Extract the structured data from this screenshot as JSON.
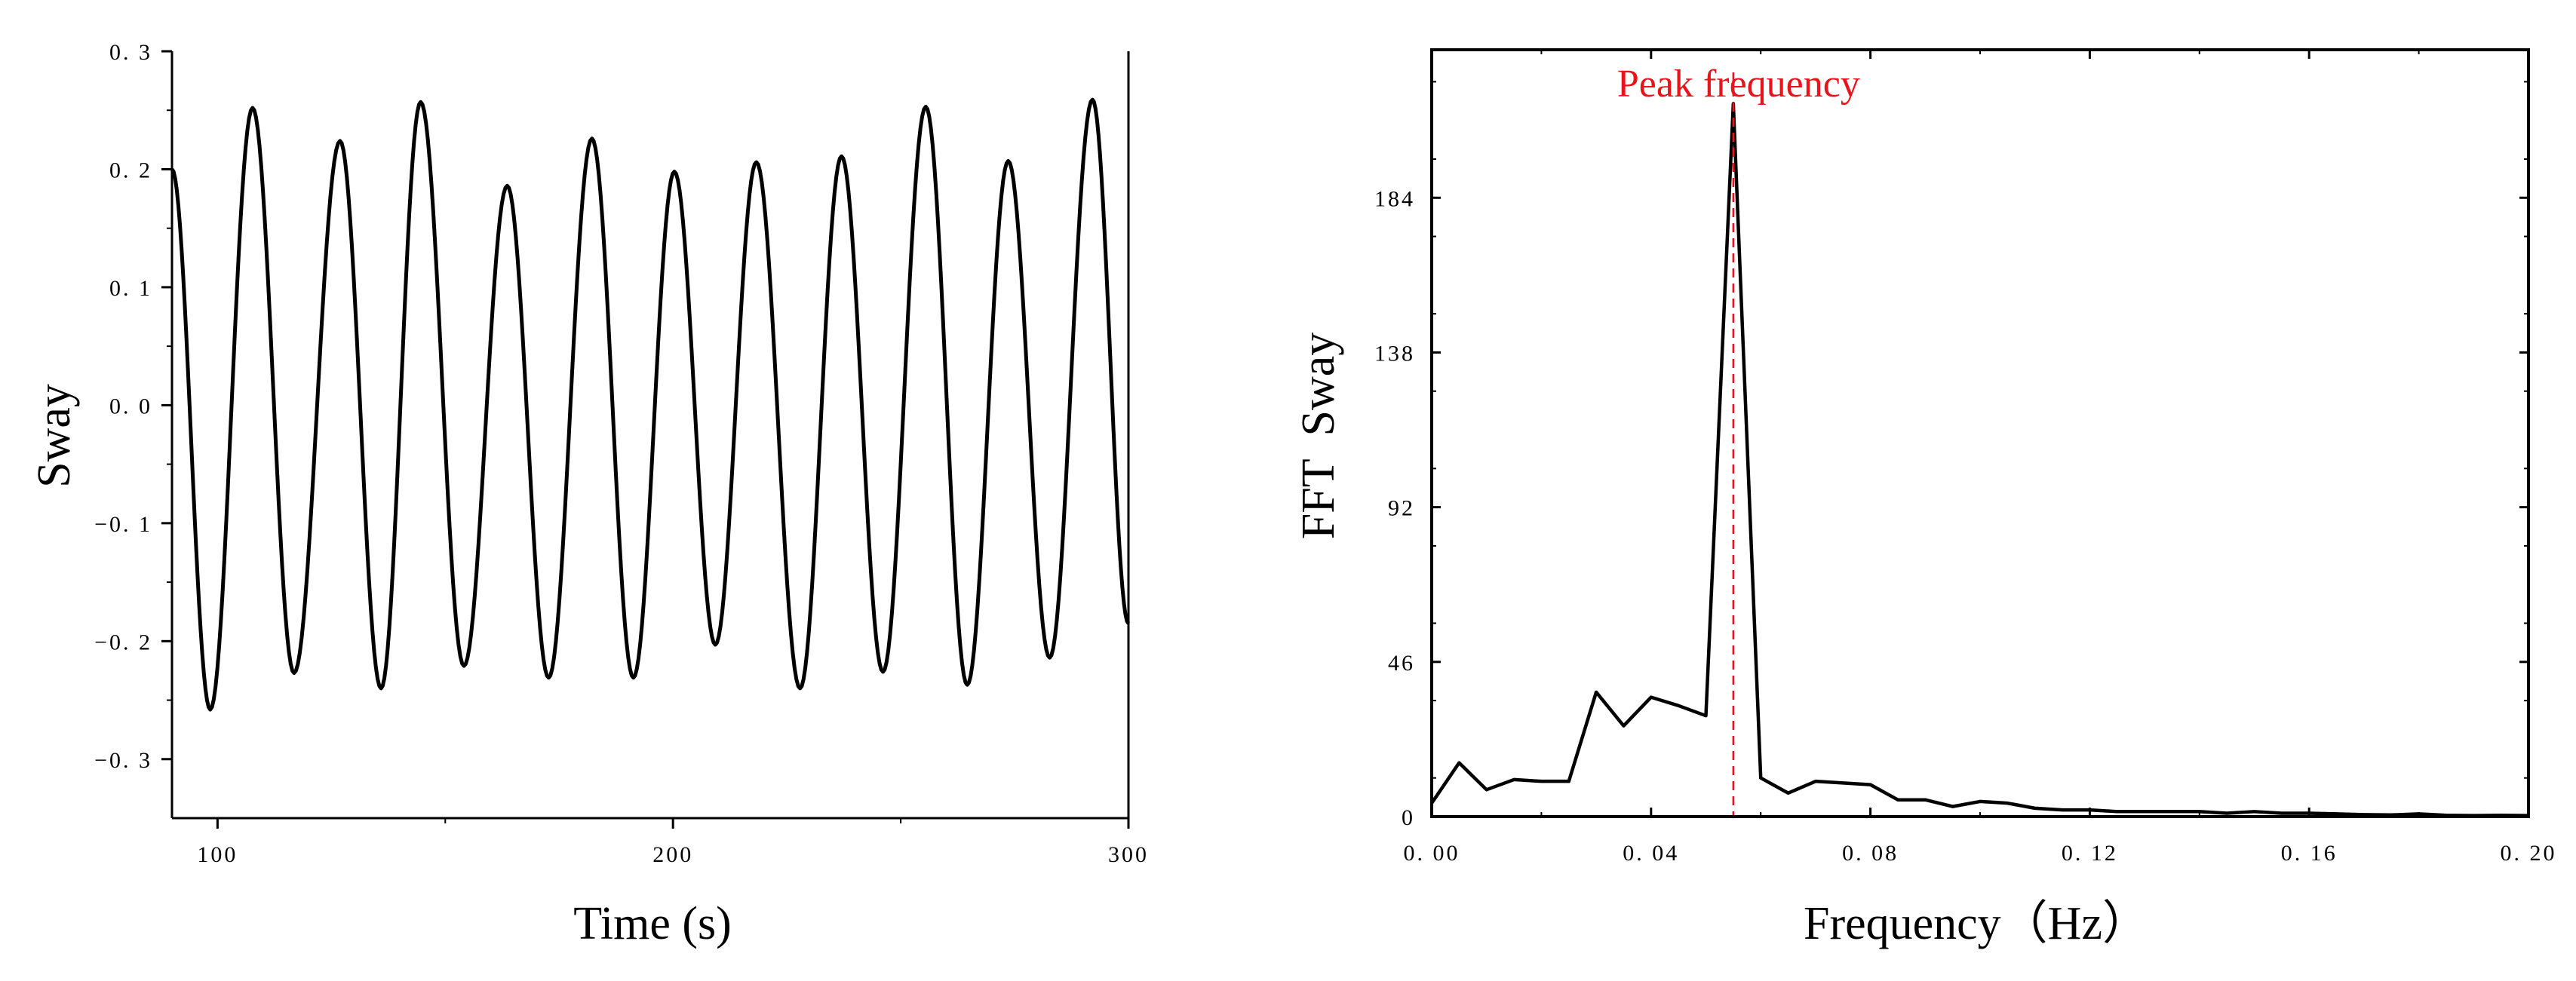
{
  "colors": {
    "line": "#000000",
    "annotation": "#e8141b",
    "background": "#ffffff"
  },
  "chart_data": [
    {
      "type": "line",
      "title": "",
      "xlabel": "Time (s)",
      "ylabel": "Sway",
      "xlim": [
        90,
        300
      ],
      "ylim": [
        -0.35,
        0.3
      ],
      "grid": false,
      "legend": "none",
      "x_ticks": [
        100,
        200,
        300
      ],
      "x_tick_labels": [
        "100",
        "200",
        "300"
      ],
      "y_ticks": [
        0.3,
        0.2,
        0.1,
        0.0,
        -0.1,
        -0.2,
        -0.3
      ],
      "y_tick_labels": [
        "0. 3",
        "0. 2",
        "0. 1",
        "0. 0",
        "−0. 1",
        "−0. 2",
        "−0. 3"
      ],
      "series": [
        {
          "x": [
            90,
            98.4,
            107.7,
            116.8,
            126.9,
            135.9,
            144.6,
            154.1,
            163.6,
            172.7,
            182.2,
            191.3,
            200.3,
            209.3,
            218.3,
            227.9,
            237.0,
            246.1,
            255.5,
            264.6,
            273.6,
            282.7,
            292.1,
            300
          ],
          "y": [
            0.2,
            -0.258,
            0.252,
            -0.227,
            0.224,
            -0.24,
            0.257,
            -0.221,
            0.186,
            -0.231,
            0.226,
            -0.231,
            0.198,
            -0.203,
            0.206,
            -0.24,
            0.211,
            -0.226,
            0.253,
            -0.237,
            0.207,
            -0.214,
            0.259,
            -0.185
          ]
        }
      ]
    },
    {
      "type": "line",
      "title": "",
      "xlabel": "Frequency（Hz）",
      "ylabel": "FFT  Sway",
      "xlim": [
        0,
        0.2
      ],
      "ylim": [
        0,
        228
      ],
      "grid": false,
      "legend": "none",
      "x_ticks": [
        0,
        0.04,
        0.08,
        0.12,
        0.16,
        0.2
      ],
      "x_tick_labels": [
        "0. 00",
        "0. 04",
        "0. 08",
        "0. 12",
        "0. 16",
        "0. 20"
      ],
      "y_ticks": [
        0,
        46,
        92,
        138,
        184
      ],
      "y_tick_labels": [
        "0",
        "46",
        "92",
        "138",
        "184"
      ],
      "annotation": {
        "text": "Peak frequency",
        "x": 0.055
      },
      "series": [
        {
          "x": [
            0.0,
            0.005,
            0.01,
            0.015,
            0.02,
            0.025,
            0.03,
            0.035,
            0.04,
            0.045,
            0.05,
            0.055,
            0.06,
            0.065,
            0.07,
            0.075,
            0.08,
            0.085,
            0.09,
            0.095,
            0.1,
            0.105,
            0.11,
            0.115,
            0.12,
            0.125,
            0.13,
            0.135,
            0.14,
            0.145,
            0.15,
            0.155,
            0.16,
            0.165,
            0.17,
            0.175,
            0.18,
            0.185,
            0.19,
            0.195,
            0.2
          ],
          "y": [
            4,
            16,
            8,
            11,
            10.5,
            10.5,
            37,
            27,
            35.5,
            33,
            30,
            212,
            11.5,
            7,
            10.5,
            10,
            9.5,
            5,
            5,
            3,
            4.5,
            4,
            2.5,
            2,
            2,
            1.5,
            1.5,
            1.5,
            1.5,
            1,
            1.5,
            1,
            1,
            0.8,
            0.6,
            0.5,
            0.8,
            0.4,
            0.3,
            0.4,
            0.3
          ]
        }
      ]
    }
  ]
}
